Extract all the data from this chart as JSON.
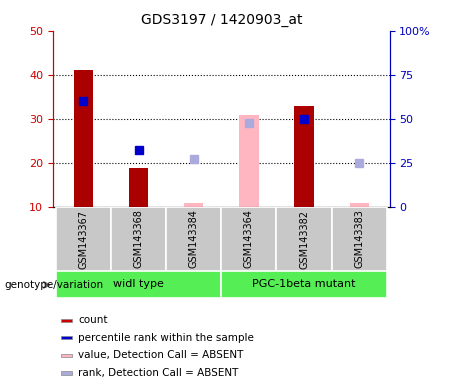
{
  "title": "GDS3197 / 1420903_at",
  "samples": [
    "GSM143367",
    "GSM143368",
    "GSM143384",
    "GSM143364",
    "GSM143382",
    "GSM143383"
  ],
  "groups": [
    {
      "label": "widl type",
      "indices": [
        0,
        1,
        2
      ],
      "color": "#66FF66"
    },
    {
      "label": "PGC-1beta mutant",
      "indices": [
        3,
        4,
        5
      ],
      "color": "#66FF66"
    }
  ],
  "count": [
    41,
    19,
    null,
    null,
    33,
    null
  ],
  "percentile_rank": [
    34,
    23,
    null,
    null,
    30,
    null
  ],
  "value_absent": [
    null,
    null,
    11,
    31,
    null,
    11
  ],
  "rank_absent": [
    null,
    null,
    21,
    29,
    null,
    20
  ],
  "ylim_left": [
    10,
    50
  ],
  "ylim_right": [
    0,
    100
  ],
  "y_ticks_left": [
    10,
    20,
    30,
    40,
    50
  ],
  "y_ticks_right": [
    0,
    25,
    50,
    75,
    100
  ],
  "y_tick_labels_right": [
    "0",
    "25",
    "50",
    "75",
    "100%"
  ],
  "colors": {
    "count": "#AA0000",
    "percentile_rank": "#0000CC",
    "value_absent": "#FFB6C1",
    "rank_absent": "#AAAADD",
    "tick_left": "#CC0000",
    "tick_right": "#0000BB",
    "sample_bg": "#C8C8C8",
    "group_green": "#55EE55"
  },
  "bar_width": 0.35,
  "marker_size": 6,
  "genotype_label": "genotype/variation",
  "legend_items": [
    {
      "label": "count",
      "color": "#CC0000"
    },
    {
      "label": "percentile rank within the sample",
      "color": "#0000CC"
    },
    {
      "label": "value, Detection Call = ABSENT",
      "color": "#FFB6C1"
    },
    {
      "label": "rank, Detection Call = ABSENT",
      "color": "#AAAADD"
    }
  ]
}
